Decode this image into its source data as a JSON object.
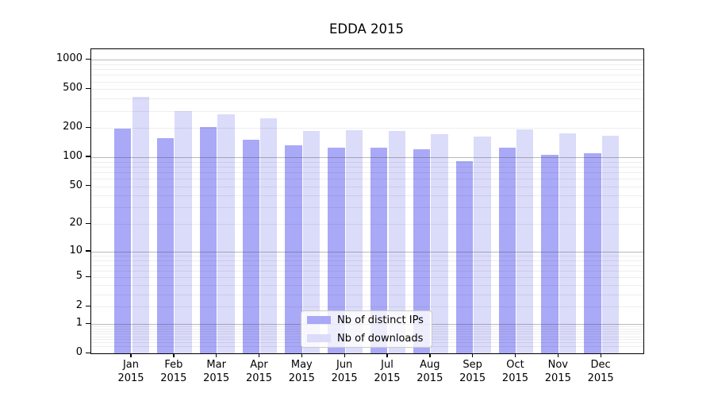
{
  "chart_data": {
    "type": "bar",
    "title": "EDDA 2015",
    "categories": [
      "Jan",
      "Feb",
      "Mar",
      "Apr",
      "May",
      "Jun",
      "Jul",
      "Aug",
      "Sep",
      "Oct",
      "Nov",
      "Dec"
    ],
    "category_year": "2015",
    "series": [
      {
        "name": "Nb of distinct IPs",
        "color": "#a9a9f7",
        "values": [
          197,
          158,
          202,
          151,
          133,
          126,
          125,
          121,
          91,
          126,
          105,
          110
        ]
      },
      {
        "name": "Nb of downloads",
        "color": "#dbdbfa",
        "values": [
          415,
          295,
          273,
          249,
          184,
          189,
          186,
          171,
          163,
          193,
          174,
          166
        ]
      }
    ],
    "y_axis": {
      "scale": "log1p",
      "tick_labels": [
        "0",
        "1",
        "2",
        "5",
        "10",
        "20",
        "50",
        "100",
        "200",
        "500",
        "1000"
      ],
      "tick_values": [
        0,
        1,
        2,
        5,
        10,
        20,
        50,
        100,
        200,
        500,
        1000
      ],
      "minor_grid_values": [
        0.2,
        0.3,
        0.4,
        0.5,
        0.6,
        0.7,
        0.8,
        0.9,
        2,
        3,
        4,
        5,
        6,
        7,
        8,
        9,
        20,
        30,
        40,
        50,
        60,
        70,
        80,
        90,
        200,
        300,
        400,
        500,
        600,
        700,
        800,
        900
      ],
      "major_grid_values": [
        1,
        10,
        100,
        1000
      ],
      "top_value": 1280
    },
    "grid": "both",
    "legend_position": "lower center"
  }
}
